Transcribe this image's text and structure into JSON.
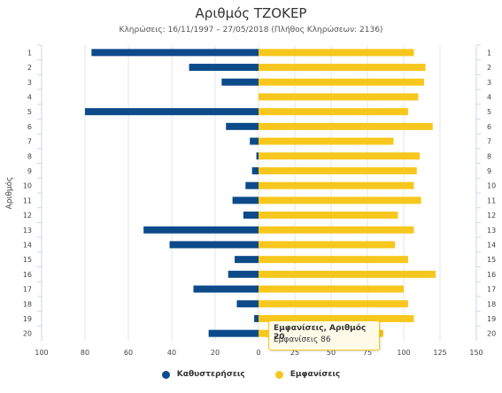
{
  "chart_data": {
    "type": "bar",
    "title": "Αριθμός ΤΖΟΚΕΡ",
    "subtitle": "Κληρώσεις: 16/11/1997 – 27/05/2018 (Πλήθος Κληρώσεων: 2136)",
    "ylabel": "Αριθμός",
    "categories": [
      "1",
      "2",
      "3",
      "4",
      "5",
      "6",
      "7",
      "8",
      "9",
      "10",
      "11",
      "12",
      "13",
      "14",
      "15",
      "16",
      "17",
      "18",
      "19",
      "20"
    ],
    "xticks_left": [
      "100",
      "80",
      "60",
      "40",
      "20",
      "0"
    ],
    "xticks_right": [
      "25",
      "50",
      "75",
      "100",
      "125",
      "150"
    ],
    "left_range": [
      0,
      100
    ],
    "right_range": [
      0,
      150
    ],
    "series": [
      {
        "name": "Καθυστερήσεις",
        "color": "#0d4a8a",
        "side": "left",
        "values": [
          77,
          32,
          17,
          0,
          80,
          15,
          4,
          1,
          3,
          6,
          12,
          7,
          53,
          41,
          11,
          14,
          30,
          10,
          2,
          23
        ]
      },
      {
        "name": "Εμφανίσεις",
        "color": "#f7c71d",
        "side": "right",
        "values": [
          107,
          115,
          114,
          110,
          103,
          120,
          93,
          111,
          109,
          107,
          112,
          96,
          107,
          94,
          103,
          122,
          100,
          103,
          107,
          86
        ]
      }
    ],
    "tooltip": {
      "title": "Εμφανίσεις, Αριθμός 20",
      "value_text": "Εμφανίσεις 86"
    },
    "grid": true,
    "legend_position": "bottom"
  }
}
